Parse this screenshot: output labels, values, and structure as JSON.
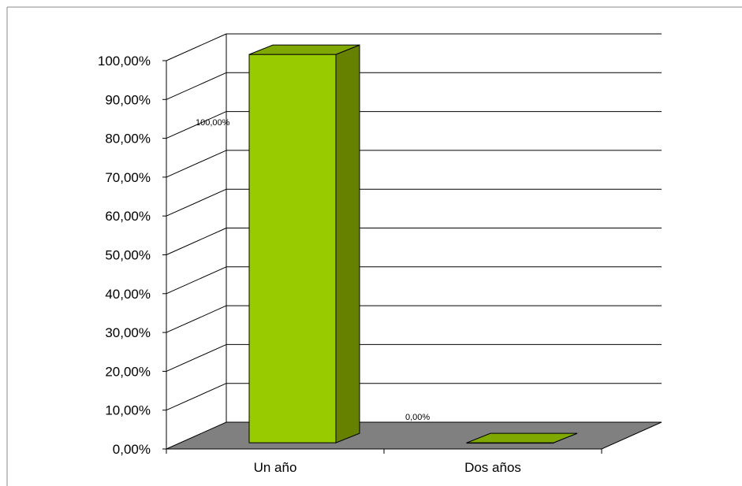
{
  "chart_data": {
    "type": "bar",
    "title": "",
    "xlabel": "",
    "ylabel": "",
    "categories": [
      "Un año",
      "Dos años"
    ],
    "values": [
      1.0,
      0.0
    ],
    "data_labels": [
      "100,00%",
      "0,00%"
    ],
    "ylim": [
      0,
      1
    ],
    "y_ticks": [
      {
        "value": 0.0,
        "label": "0,00%"
      },
      {
        "value": 0.1,
        "label": "10,00%"
      },
      {
        "value": 0.2,
        "label": "20,00%"
      },
      {
        "value": 0.3,
        "label": "30,00%"
      },
      {
        "value": 0.4,
        "label": "40,00%"
      },
      {
        "value": 0.5,
        "label": "50,00%"
      },
      {
        "value": 0.6,
        "label": "60,00%"
      },
      {
        "value": 0.7,
        "label": "70,00%"
      },
      {
        "value": 0.8,
        "label": "80,00%"
      },
      {
        "value": 0.9,
        "label": "90,00%"
      },
      {
        "value": 1.0,
        "label": "100,00%"
      }
    ],
    "grid": true,
    "legend": "none",
    "style": "3d",
    "colors": {
      "bar_front": "#99cc00",
      "bar_side": "#668000",
      "bar_top": "#7fa800",
      "floor": "#808080",
      "grid": "#000000"
    }
  }
}
